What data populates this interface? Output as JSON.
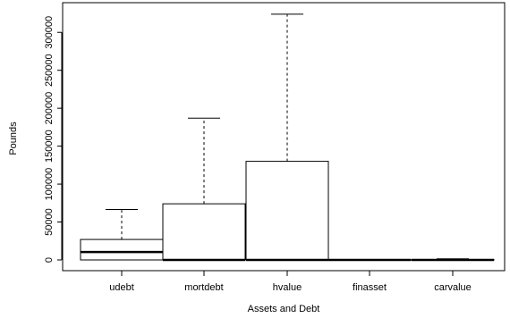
{
  "chart_data": {
    "type": "boxplot",
    "xlabel": "Assets and Debt",
    "ylabel": "Pounds",
    "ylim": [
      -5000,
      340000
    ],
    "yticks": [
      0,
      50000,
      100000,
      150000,
      200000,
      250000,
      300000
    ],
    "ytick_labels": [
      "0",
      "50000",
      "100000",
      "150000",
      "200000",
      "250000",
      "300000"
    ],
    "grid": false,
    "categories": [
      "udebt",
      "mortdebt",
      "hvalue",
      "finasset",
      "carvalue"
    ],
    "boxes": [
      {
        "name": "udebt",
        "whisker_low": 0,
        "q1": 0,
        "median": 10500,
        "q3": 27000,
        "whisker_high": 66500
      },
      {
        "name": "mortdebt",
        "whisker_low": 0,
        "q1": 0,
        "median": 0,
        "q3": 74000,
        "whisker_high": 187000
      },
      {
        "name": "hvalue",
        "whisker_low": 0,
        "q1": 0,
        "median": 0,
        "q3": 130000,
        "whisker_high": 324000
      },
      {
        "name": "finasset",
        "whisker_low": 0,
        "q1": 0,
        "median": 0,
        "q3": 0,
        "whisker_high": 0
      },
      {
        "name": "carvalue",
        "whisker_low": 0,
        "q1": 0,
        "median": 0,
        "q3": 600,
        "whisker_high": 1500
      }
    ]
  }
}
